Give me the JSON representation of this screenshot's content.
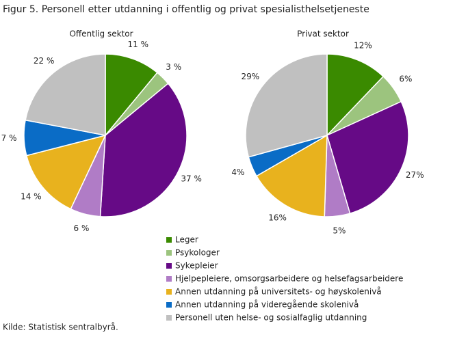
{
  "title": "Figur 5. Personell etter utdanning i offentlig og privat spesialisthelsetjeneste",
  "source": "Kilde: Statistisk sentralbyrå.",
  "legend": {
    "categories": [
      "Leger",
      "Psykologer",
      "Sykepleier",
      "Hjelpepleiere, omsorgsarbeidere og helsefagsarbeidere",
      "Annen utdanning på universitets- og høyskolenivå",
      "Annen utdanning på videregående skolenivå",
      "Personell uten helse- og sosialfaglig utdanning"
    ],
    "colors": [
      "#3a8a00",
      "#9cc47e",
      "#660a86",
      "#b07cc6",
      "#e8b21e",
      "#0a6cc6",
      "#c0c0c0"
    ]
  },
  "chart_data": [
    {
      "type": "pie",
      "title": "Offentlig  sektor",
      "values": [
        11,
        3,
        37,
        6,
        14,
        7,
        22
      ],
      "value_labels": [
        "11 %",
        "3 %",
        "37 %",
        "6 %",
        "14 %",
        "7 %",
        "22 %"
      ]
    },
    {
      "type": "pie",
      "title": "Privat sektor",
      "values": [
        12,
        6,
        27,
        5,
        16,
        4,
        29
      ],
      "value_labels": [
        "12%",
        "6%",
        "27%",
        "5%",
        "16%",
        "4%",
        "29%"
      ]
    }
  ]
}
